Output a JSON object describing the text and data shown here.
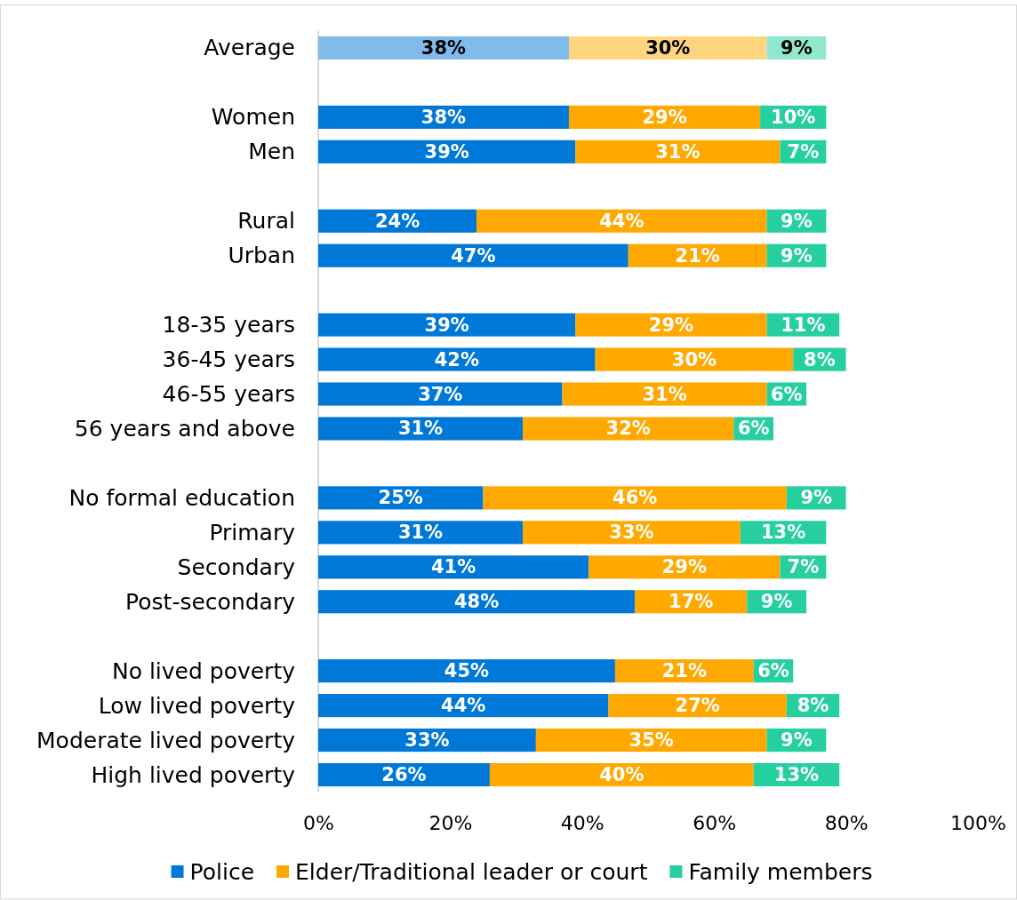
{
  "chart_data": {
    "type": "bar",
    "orientation": "horizontal",
    "stacked": true,
    "categories": [
      "Average",
      null,
      "Women",
      "Men",
      null,
      "Rural",
      "Urban",
      null,
      "18-35 years",
      "36-45 years",
      "46-55 years",
      "56 years and above",
      null,
      "No formal education",
      "Primary",
      "Secondary",
      "Post-secondary",
      null,
      "No lived poverty",
      "Low lived poverty",
      "Moderate lived poverty",
      "High lived poverty"
    ],
    "series": [
      {
        "name": "Police",
        "color": "#0078d7",
        "colors": [
          "#80bbeb",
          null,
          "#0078d7",
          "#0078d7",
          null,
          "#0078d7",
          "#0078d7",
          null,
          "#0078d7",
          "#0078d7",
          "#0078d7",
          "#0078d7",
          null,
          "#0078d7",
          "#0078d7",
          "#0078d7",
          "#0078d7",
          null,
          "#0078d7",
          "#0078d7",
          "#0078d7",
          "#0078d7"
        ],
        "values": [
          38,
          null,
          38,
          39,
          null,
          24,
          47,
          null,
          39,
          42,
          37,
          31,
          null,
          25,
          31,
          41,
          48,
          null,
          45,
          44,
          33,
          26
        ],
        "value_labels": [
          "38%",
          null,
          "38%",
          "39%",
          null,
          "24%",
          "47%",
          null,
          "39%",
          "42%",
          "37%",
          "31%",
          null,
          "25%",
          "31%",
          "41%",
          "48%",
          null,
          "45%",
          "44%",
          "33%",
          "26%"
        ]
      },
      {
        "name": "Elder/Traditional leader or court",
        "color": "#ffa800",
        "colors": [
          "#ffd47f",
          null,
          "#ffa800",
          "#ffa800",
          null,
          "#ffa800",
          "#ffa800",
          null,
          "#ffa800",
          "#ffa800",
          "#ffa800",
          "#ffa800",
          null,
          "#ffa800",
          "#ffa800",
          "#ffa800",
          "#ffa800",
          null,
          "#ffa800",
          "#ffa800",
          "#ffa800",
          "#ffa800"
        ],
        "values": [
          30,
          null,
          29,
          31,
          null,
          44,
          21,
          null,
          29,
          30,
          31,
          32,
          null,
          46,
          33,
          29,
          17,
          null,
          21,
          27,
          35,
          40
        ],
        "value_labels": [
          "30%",
          null,
          "29%",
          "31%",
          null,
          "44%",
          "21%",
          null,
          "29%",
          "30%",
          "31%",
          "32%",
          null,
          "46%",
          "33%",
          "29%",
          "17%",
          null,
          "21%",
          "27%",
          "35%",
          "40%"
        ]
      },
      {
        "name": "Family members",
        "color": "#26cf9f",
        "colors": [
          "#92e7cf",
          null,
          "#26cf9f",
          "#26cf9f",
          null,
          "#26cf9f",
          "#26cf9f",
          null,
          "#26cf9f",
          "#26cf9f",
          "#26cf9f",
          "#26cf9f",
          null,
          "#26cf9f",
          "#26cf9f",
          "#26cf9f",
          "#26cf9f",
          null,
          "#26cf9f",
          "#26cf9f",
          "#26cf9f",
          "#26cf9f"
        ],
        "values": [
          9,
          null,
          10,
          7,
          null,
          9,
          9,
          null,
          11,
          8,
          6,
          6,
          null,
          9,
          13,
          7,
          9,
          null,
          6,
          8,
          9,
          13
        ],
        "value_labels": [
          "9%",
          null,
          "10%",
          "7%",
          null,
          "9%",
          "9%",
          null,
          "11%",
          "8%",
          "6%",
          "6%",
          null,
          "9%",
          "13%",
          "7%",
          "9%",
          null,
          "6%",
          "8%",
          "9%",
          "13%"
        ]
      }
    ],
    "xlim": [
      0,
      100
    ],
    "xticks": [
      {
        "value": 0,
        "label": "0%"
      },
      {
        "value": 20,
        "label": "20%"
      },
      {
        "value": 40,
        "label": "40%"
      },
      {
        "value": 60,
        "label": "60%"
      },
      {
        "value": 80,
        "label": "80%"
      },
      {
        "value": 100,
        "label": "100%"
      }
    ],
    "legend": "bottom"
  }
}
